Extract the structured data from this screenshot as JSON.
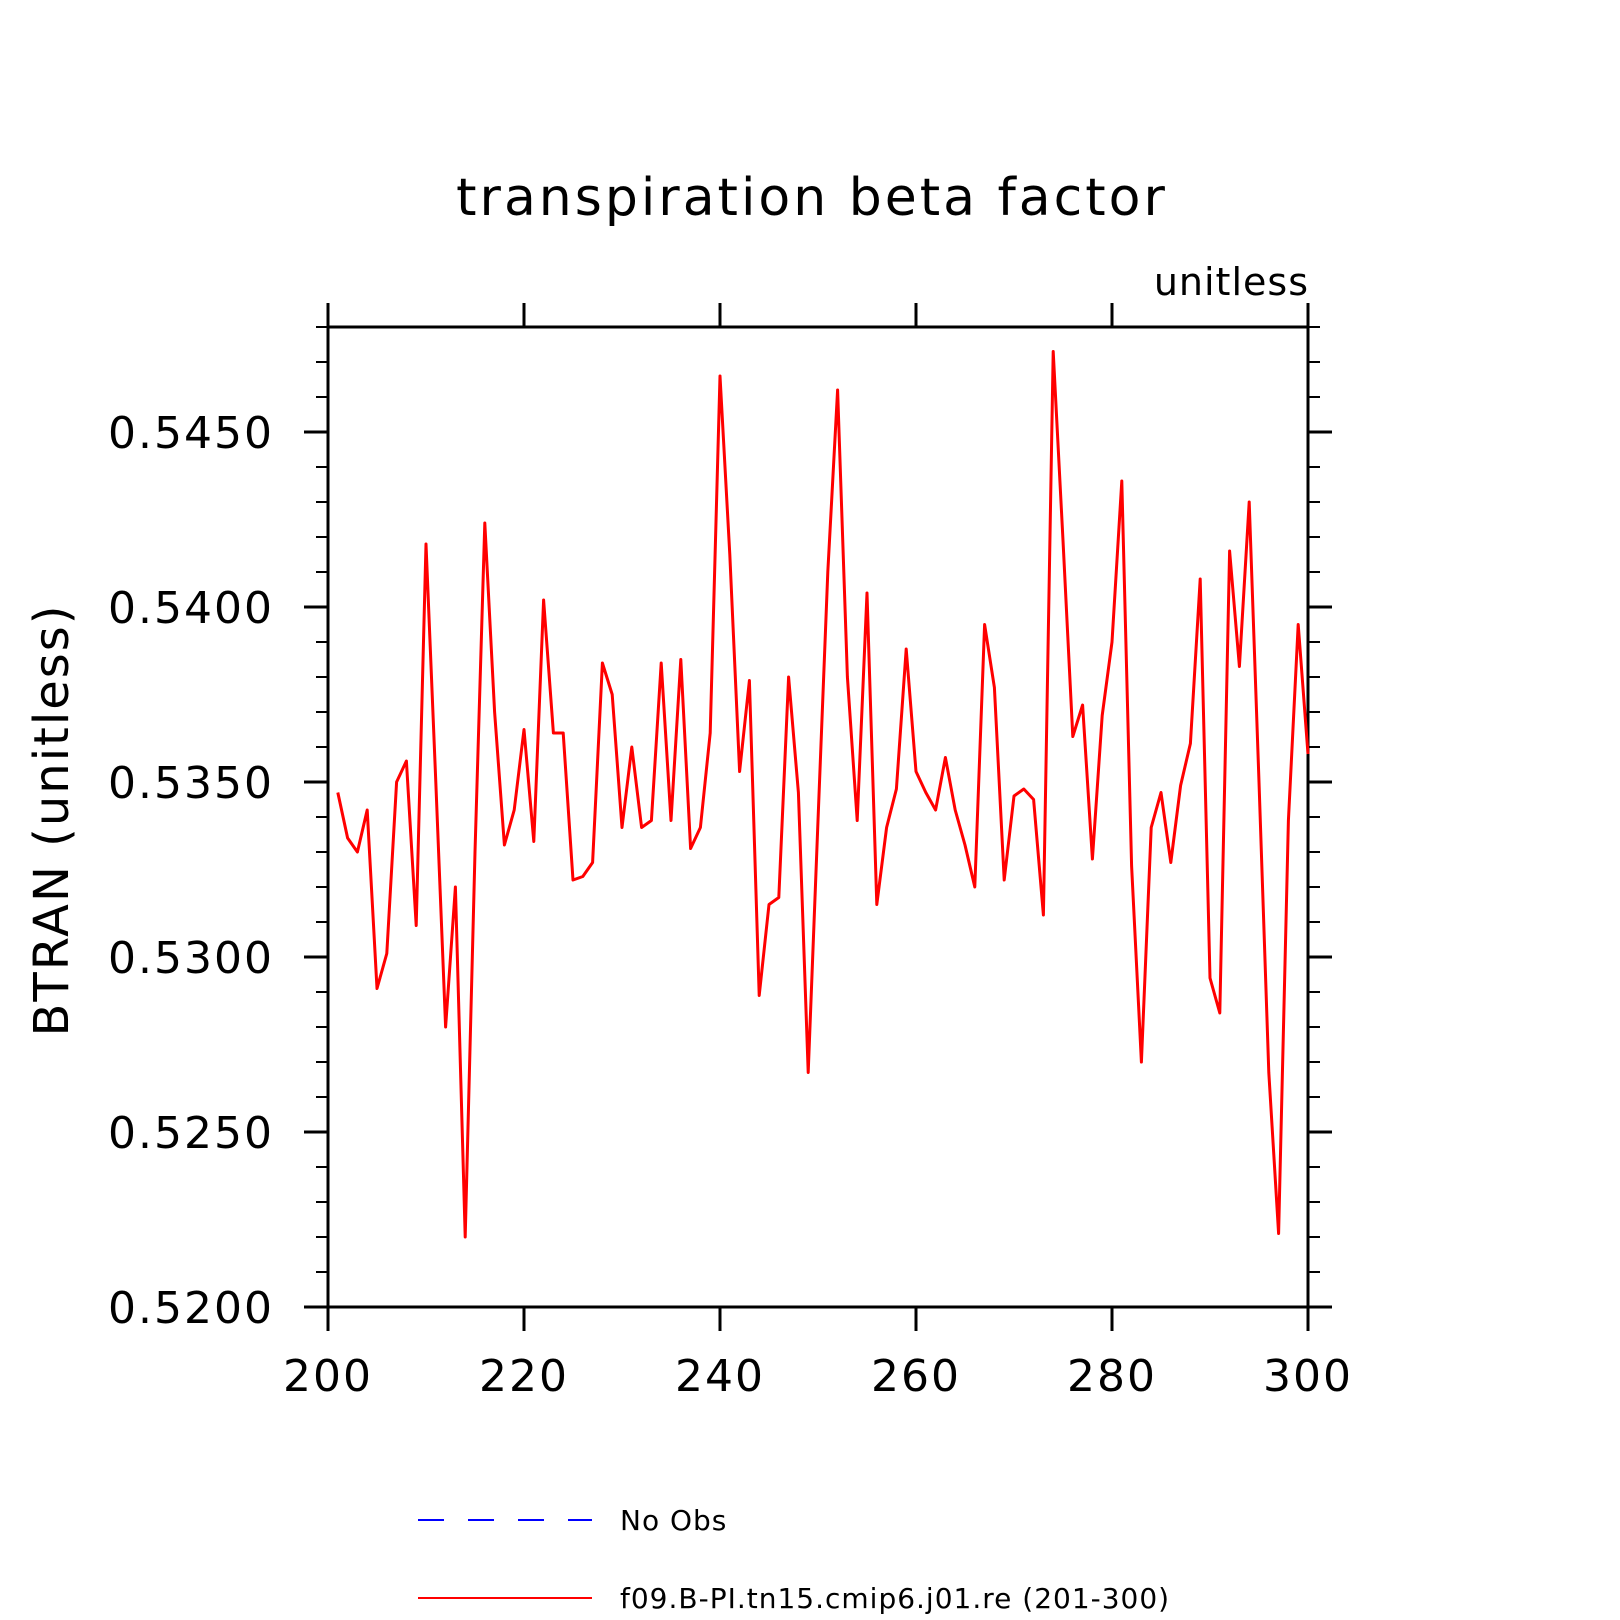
{
  "chart_data": {
    "type": "line",
    "title": "transpiration beta factor",
    "units_label": "unitless",
    "ylabel": "BTRAN   (unitless)",
    "xlabel": "",
    "xlim": [
      200,
      300
    ],
    "ylim": [
      0.52,
      0.548
    ],
    "xticks": [
      200,
      220,
      240,
      260,
      280,
      300
    ],
    "yticks": [
      0.52,
      0.525,
      0.53,
      0.535,
      0.54,
      0.545
    ],
    "ytick_labels": [
      "0.5200",
      "0.5250",
      "0.5300",
      "0.5350",
      "0.5400",
      "0.5450"
    ],
    "grid": false,
    "legend_position": "bottom",
    "series": [
      {
        "name": "No Obs",
        "color": "#0000ff",
        "dash": "dashed",
        "x": [],
        "y": []
      },
      {
        "name": "f09.B-PI.tn15.cmip6.j01.re (201-300)",
        "color": "#ff0000",
        "dash": "solid",
        "x": [
          201,
          202,
          203,
          204,
          205,
          206,
          207,
          208,
          209,
          210,
          211,
          212,
          213,
          214,
          215,
          216,
          217,
          218,
          219,
          220,
          221,
          222,
          223,
          224,
          225,
          226,
          227,
          228,
          229,
          230,
          231,
          232,
          233,
          234,
          235,
          236,
          237,
          238,
          239,
          240,
          241,
          242,
          243,
          244,
          245,
          246,
          247,
          248,
          249,
          250,
          251,
          252,
          253,
          254,
          255,
          256,
          257,
          258,
          259,
          260,
          261,
          262,
          263,
          264,
          265,
          266,
          267,
          268,
          269,
          270,
          271,
          272,
          273,
          274,
          275,
          276,
          277,
          278,
          279,
          280,
          281,
          282,
          283,
          284,
          285,
          286,
          287,
          288,
          289,
          290,
          291,
          292,
          293,
          294,
          295,
          296,
          297,
          298,
          299,
          300
        ],
        "y": [
          0.5347,
          0.5334,
          0.533,
          0.5342,
          0.5291,
          0.5301,
          0.535,
          0.5356,
          0.5309,
          0.5418,
          0.535,
          0.528,
          0.532,
          0.522,
          0.533,
          0.5424,
          0.537,
          0.5332,
          0.5342,
          0.5365,
          0.5333,
          0.5402,
          0.5364,
          0.5364,
          0.5322,
          0.5323,
          0.5327,
          0.5384,
          0.5375,
          0.5337,
          0.536,
          0.5337,
          0.5339,
          0.5384,
          0.5339,
          0.5385,
          0.5331,
          0.5337,
          0.5364,
          0.5466,
          0.5415,
          0.5353,
          0.5379,
          0.5289,
          0.5315,
          0.5317,
          0.538,
          0.5347,
          0.5267,
          0.5339,
          0.541,
          0.5462,
          0.538,
          0.5339,
          0.5404,
          0.5315,
          0.5337,
          0.5348,
          0.5388,
          0.5353,
          0.5347,
          0.5342,
          0.5357,
          0.5342,
          0.5332,
          0.532,
          0.5395,
          0.5377,
          0.5322,
          0.5346,
          0.5348,
          0.5345,
          0.5312,
          0.5473,
          0.5419,
          0.5363,
          0.5372,
          0.5328,
          0.5369,
          0.539,
          0.5436,
          0.5326,
          0.527,
          0.5337,
          0.5347,
          0.5327,
          0.5349,
          0.5361,
          0.5408,
          0.5294,
          0.5284,
          0.5416,
          0.5383,
          0.543,
          0.535,
          0.5267,
          0.5221,
          0.5339,
          0.5395,
          0.5358
        ]
      }
    ]
  }
}
